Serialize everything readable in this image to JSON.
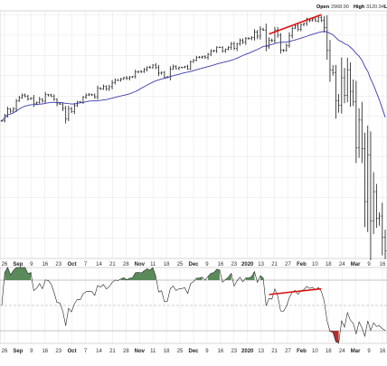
{
  "header": {
    "open_label": "Open",
    "open_value": "2968.90",
    "high_label": "High",
    "high_value": "3120.94",
    "extra": "L"
  },
  "colors": {
    "price_bars": "#1a1a1a",
    "moving_average": "#3a3ab0",
    "divergence_line": "#dd1111",
    "oscillator_line": "#222222",
    "positive_fill": "#5a8a5a",
    "negative_fill": "#b03030",
    "grid": "#e4e4e4"
  },
  "chart_data": [
    {
      "type": "ohlc",
      "x_tick_labels": [
        "26",
        "Sep",
        "9",
        "16",
        "23",
        "Oct",
        "7",
        "14",
        "21",
        "28",
        "Nov",
        "11",
        "18",
        "25",
        "Dec",
        "9",
        "16",
        "23",
        "2020",
        "13",
        "21",
        "27",
        "Feb",
        "10",
        "18",
        "24",
        "Mar",
        "9",
        "16"
      ],
      "bold_tick_labels": [
        "Sep",
        "Oct",
        "Nov",
        "Dec",
        "2020",
        "Feb",
        "Mar"
      ],
      "closes": [
        2878,
        2906,
        2937,
        2926,
        2938,
        2976,
        2992,
        3005,
        2998,
        2985,
        2990,
        2962,
        2969,
        2984,
        2975,
        3007,
        3006,
        3000,
        2984,
        2962,
        2961,
        2940,
        2887,
        2938,
        2924,
        2953,
        2971,
        2970,
        2995,
        3005,
        3007,
        3006,
        2996,
        3039,
        3035,
        3047,
        3036,
        3046,
        3066,
        3078,
        3077,
        3085,
        3091,
        3087,
        3094,
        3096,
        3120,
        3122,
        3121,
        3131,
        3142,
        3140,
        3153,
        3141,
        3113,
        3117,
        3093,
        3095,
        3134,
        3145,
        3135,
        3141,
        3142,
        3145,
        3134,
        3168,
        3176,
        3191,
        3192,
        3196,
        3191,
        3206,
        3221,
        3224,
        3241,
        3240,
        3221,
        3231,
        3240,
        3258,
        3235,
        3257,
        3274,
        3265,
        3283,
        3283,
        3289,
        3316,
        3295,
        3330,
        3325,
        3243,
        3276,
        3273,
        3326,
        3300,
        3226,
        3225,
        3248,
        3297,
        3334,
        3345,
        3328,
        3352,
        3358,
        3380,
        3373,
        3380,
        3370,
        3386,
        3373,
        3337,
        3225,
        3128,
        3116,
        2978,
        2954,
        3090,
        3003,
        3130,
        3023,
        2972,
        2746,
        2882,
        2741,
        2480,
        2711,
        2386,
        2529,
        2398,
        2409,
        2305,
        2237
      ],
      "moving_average": {
        "start": 2905,
        "peak": 3305,
        "end": 3080
      },
      "divergence_segment": {
        "from_index": 92,
        "to_index": 110
      },
      "series": [
        {
          "type": "ohlc",
          "values": "closes"
        },
        {
          "type": "line",
          "values": "moving_average"
        }
      ]
    },
    {
      "type": "line",
      "description_level": "oscillator",
      "levels": {
        "upper": 70,
        "middle": 50,
        "lower": 30
      },
      "ylim": [
        20,
        80
      ],
      "divergence_segment": {
        "from_index": 92,
        "to_index": 110
      }
    }
  ]
}
